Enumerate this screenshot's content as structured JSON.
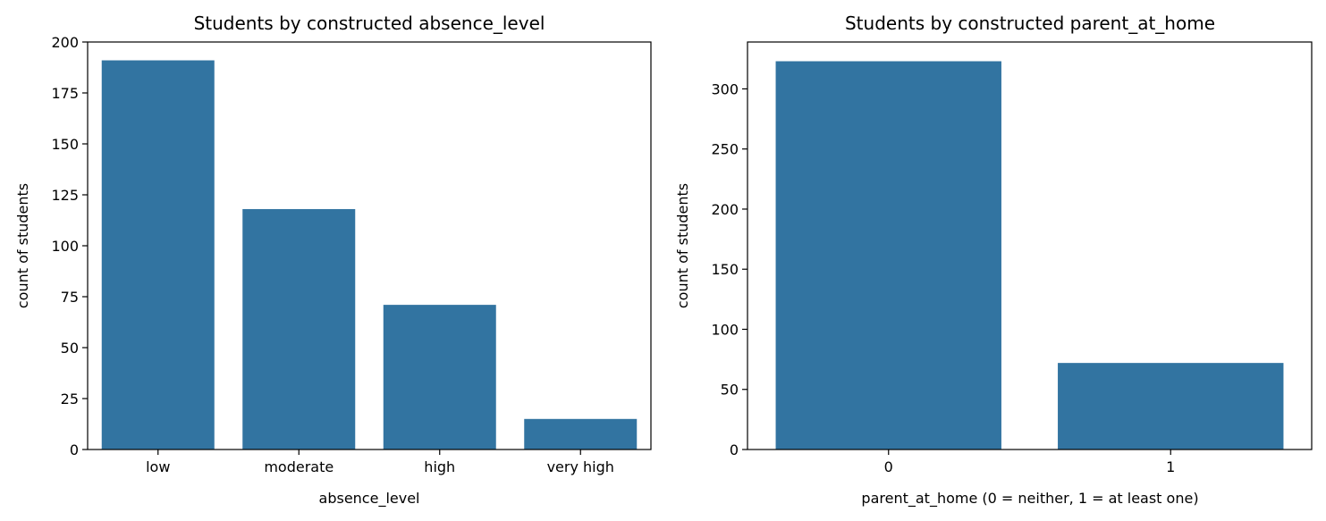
{
  "chart_data": [
    {
      "type": "bar",
      "title": "Students by constructed absence_level",
      "xlabel": "absence_level",
      "ylabel": "count of students",
      "categories": [
        "low",
        "moderate",
        "high",
        "very high"
      ],
      "values": [
        191,
        118,
        71,
        15
      ],
      "ylim": [
        0,
        200
      ],
      "yticks": [
        "0",
        "25",
        "50",
        "75",
        "100",
        "125",
        "150",
        "175",
        "200"
      ],
      "bar_color": "#3274a1",
      "grid": false
    },
    {
      "type": "bar",
      "title": "Students by constructed parent_at_home",
      "xlabel": "parent_at_home (0 = neither, 1 = at least one)",
      "ylabel": "count of students",
      "categories": [
        "0",
        "1"
      ],
      "values": [
        323,
        72
      ],
      "ylim": [
        0,
        339
      ],
      "yticks": [
        "0",
        "50",
        "100",
        "150",
        "200",
        "250",
        "300"
      ],
      "bar_color": "#3274a1",
      "grid": false
    }
  ]
}
